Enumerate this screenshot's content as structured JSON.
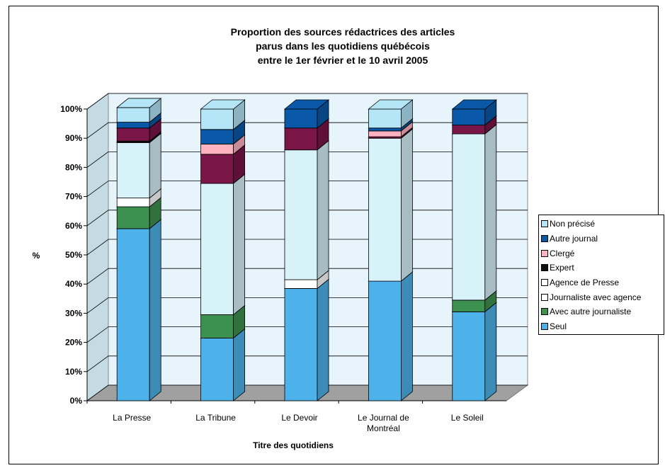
{
  "chart_data": {
    "type": "bar",
    "stacked": true,
    "percent": true,
    "three_d": true,
    "title_lines": [
      "Proportion des sources rédactrices des articles",
      "parus dans les quotidiens québécois",
      "entre le 1er février et le 10 avril 2005"
    ],
    "xlabel": "Titre des quotidiens",
    "ylabel": "%",
    "ylim": [
      0,
      100
    ],
    "yticks": [
      "0%",
      "10%",
      "20%",
      "30%",
      "40%",
      "50%",
      "60%",
      "70%",
      "80%",
      "90%",
      "100%"
    ],
    "categories": [
      [
        "La Presse"
      ],
      [
        "La Tribune"
      ],
      [
        "Le Devoir"
      ],
      [
        "Le Journal de",
        "Montréal"
      ],
      [
        "Le Soleil"
      ]
    ],
    "legend_position": "right",
    "grid": true,
    "series": [
      {
        "name": "Seul",
        "color": "#4eb2ea",
        "values": [
          59,
          21.5,
          38.5,
          41,
          30.5
        ]
      },
      {
        "name": "Avec autre journaliste",
        "color": "#3d9150",
        "values": [
          7.5,
          8,
          0,
          0,
          4
        ]
      },
      {
        "name": "Journaliste avec agence",
        "color": "#ffffff",
        "values": [
          0,
          0,
          0,
          0,
          0
        ]
      },
      {
        "name": "Agence de Presse",
        "color": "#ffffff",
        "values": [
          3,
          0,
          3,
          0,
          0
        ]
      },
      {
        "name": "Journaliste avec agence",
        "color": "#d8f2fa",
        "values": [
          19,
          45,
          44.5,
          49,
          57
        ]
      },
      {
        "name": "Expert",
        "color": "#111111",
        "values": [
          0.5,
          0,
          0,
          0,
          0
        ]
      },
      {
        "name": "Expert",
        "color": "#7a1548",
        "values": [
          4.5,
          10,
          7.5,
          0.5,
          3
        ]
      },
      {
        "name": "Clergé",
        "color": "#ffb3c0",
        "values": [
          0,
          3.5,
          0,
          2,
          0
        ]
      },
      {
        "name": "Autre journal",
        "color": "#0a58a8",
        "values": [
          2,
          5,
          6.5,
          1,
          5.5
        ]
      },
      {
        "name": "Non précisé",
        "color": "#b4e6f8",
        "values": [
          5,
          7,
          0,
          6.5,
          0
        ]
      }
    ],
    "legend": [
      {
        "label": "Non précisé",
        "color": "#b4e6f8"
      },
      {
        "label": "Autre journal",
        "color": "#0a58a8"
      },
      {
        "label": "Clergé",
        "color": "#ffb3c0"
      },
      {
        "label": "Expert",
        "color": "#111111"
      },
      {
        "label": "Agence de Presse",
        "color": "#ffffff"
      },
      {
        "label": "Journaliste avec agence",
        "color": "#ffffff"
      },
      {
        "label": "Avec autre journaliste",
        "color": "#3d9150"
      },
      {
        "label": "Seul",
        "color": "#4eb2ea"
      }
    ]
  }
}
